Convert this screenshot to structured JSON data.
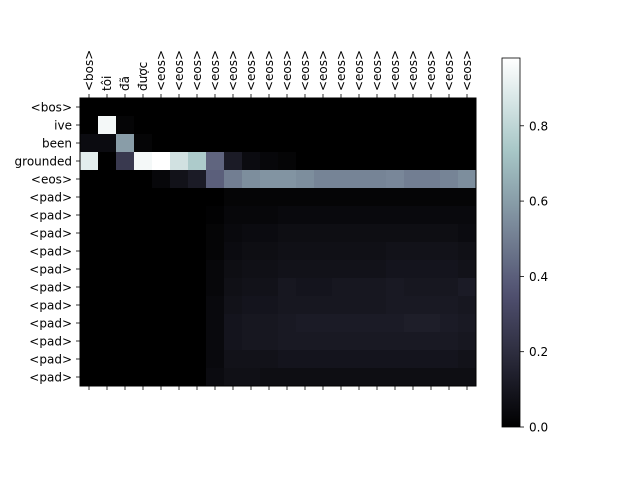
{
  "chart_data": {
    "type": "heatmap",
    "title": "",
    "xlabel": "",
    "ylabel": "",
    "x_labels": [
      "<bos>",
      "tôi",
      "đã",
      "được",
      "<eos>",
      "<eos>",
      "<eos>",
      "<eos>",
      "<eos>",
      "<eos>",
      "<eos>",
      "<eos>",
      "<eos>",
      "<eos>",
      "<eos>",
      "<eos>",
      "<eos>",
      "<eos>",
      "<eos>",
      "<eos>",
      "<eos>",
      "<eos>"
    ],
    "y_labels": [
      "<bos>",
      "ive",
      "been",
      "grounded",
      "<eos>",
      "<pad>",
      "<pad>",
      "<pad>",
      "<pad>",
      "<pad>",
      "<pad>",
      "<pad>",
      "<pad>",
      "<pad>",
      "<pad>",
      "<pad>"
    ],
    "colormap": "bone",
    "colorbar": {
      "min": 0.0,
      "max": 0.98,
      "ticks": [
        0.0,
        0.2,
        0.4,
        0.6,
        0.8
      ],
      "tick_labels": [
        "0.0",
        "0.2",
        "0.4",
        "0.6",
        "0.8"
      ]
    },
    "values": [
      [
        0.0,
        0.0,
        0.0,
        0.0,
        0.0,
        0.0,
        0.0,
        0.0,
        0.0,
        0.0,
        0.0,
        0.0,
        0.0,
        0.0,
        0.0,
        0.0,
        0.0,
        0.0,
        0.0,
        0.0,
        0.0,
        0.0
      ],
      [
        0.0,
        0.95,
        0.02,
        0.0,
        0.0,
        0.0,
        0.0,
        0.0,
        0.0,
        0.0,
        0.0,
        0.0,
        0.0,
        0.0,
        0.0,
        0.0,
        0.0,
        0.0,
        0.0,
        0.0,
        0.0,
        0.0
      ],
      [
        0.05,
        0.05,
        0.6,
        0.02,
        0.0,
        0.0,
        0.0,
        0.0,
        0.0,
        0.0,
        0.0,
        0.0,
        0.0,
        0.0,
        0.0,
        0.0,
        0.0,
        0.0,
        0.0,
        0.0,
        0.0,
        0.0
      ],
      [
        0.9,
        0.0,
        0.25,
        0.95,
        0.98,
        0.85,
        0.75,
        0.42,
        0.12,
        0.05,
        0.03,
        0.02,
        0.0,
        0.0,
        0.0,
        0.0,
        0.0,
        0.0,
        0.0,
        0.0,
        0.0,
        0.0
      ],
      [
        0.0,
        0.0,
        0.0,
        0.0,
        0.03,
        0.08,
        0.12,
        0.4,
        0.5,
        0.55,
        0.57,
        0.57,
        0.55,
        0.52,
        0.52,
        0.52,
        0.52,
        0.53,
        0.5,
        0.5,
        0.52,
        0.55
      ],
      [
        0.0,
        0.0,
        0.0,
        0.0,
        0.0,
        0.0,
        0.0,
        0.0,
        0.02,
        0.02,
        0.02,
        0.02,
        0.02,
        0.02,
        0.02,
        0.02,
        0.02,
        0.02,
        0.02,
        0.02,
        0.02,
        0.02
      ],
      [
        0.0,
        0.0,
        0.0,
        0.0,
        0.0,
        0.0,
        0.0,
        0.01,
        0.03,
        0.03,
        0.03,
        0.04,
        0.04,
        0.04,
        0.04,
        0.04,
        0.04,
        0.04,
        0.04,
        0.04,
        0.04,
        0.04
      ],
      [
        0.0,
        0.0,
        0.0,
        0.0,
        0.0,
        0.0,
        0.0,
        0.02,
        0.04,
        0.05,
        0.05,
        0.06,
        0.06,
        0.06,
        0.06,
        0.06,
        0.06,
        0.06,
        0.06,
        0.06,
        0.06,
        0.05
      ],
      [
        0.0,
        0.0,
        0.0,
        0.0,
        0.0,
        0.0,
        0.0,
        0.02,
        0.05,
        0.06,
        0.06,
        0.07,
        0.07,
        0.07,
        0.07,
        0.07,
        0.07,
        0.08,
        0.08,
        0.08,
        0.08,
        0.07
      ],
      [
        0.0,
        0.0,
        0.0,
        0.0,
        0.0,
        0.0,
        0.0,
        0.03,
        0.06,
        0.07,
        0.07,
        0.08,
        0.08,
        0.08,
        0.08,
        0.08,
        0.08,
        0.09,
        0.09,
        0.09,
        0.09,
        0.08
      ],
      [
        0.0,
        0.0,
        0.0,
        0.0,
        0.0,
        0.0,
        0.0,
        0.03,
        0.07,
        0.08,
        0.08,
        0.1,
        0.09,
        0.09,
        0.1,
        0.1,
        0.1,
        0.11,
        0.1,
        0.1,
        0.1,
        0.12
      ],
      [
        0.0,
        0.0,
        0.0,
        0.0,
        0.0,
        0.0,
        0.0,
        0.04,
        0.08,
        0.09,
        0.09,
        0.1,
        0.1,
        0.1,
        0.1,
        0.1,
        0.1,
        0.11,
        0.11,
        0.11,
        0.11,
        0.1
      ],
      [
        0.0,
        0.0,
        0.0,
        0.0,
        0.0,
        0.0,
        0.0,
        0.04,
        0.09,
        0.1,
        0.1,
        0.11,
        0.12,
        0.12,
        0.12,
        0.12,
        0.12,
        0.12,
        0.13,
        0.13,
        0.12,
        0.11
      ],
      [
        0.0,
        0.0,
        0.0,
        0.0,
        0.0,
        0.0,
        0.0,
        0.04,
        0.09,
        0.1,
        0.1,
        0.11,
        0.11,
        0.11,
        0.11,
        0.11,
        0.11,
        0.11,
        0.11,
        0.11,
        0.11,
        0.1
      ],
      [
        0.0,
        0.0,
        0.0,
        0.0,
        0.0,
        0.0,
        0.0,
        0.04,
        0.08,
        0.08,
        0.08,
        0.09,
        0.09,
        0.09,
        0.09,
        0.09,
        0.09,
        0.09,
        0.09,
        0.09,
        0.09,
        0.08
      ],
      [
        0.0,
        0.0,
        0.0,
        0.0,
        0.0,
        0.0,
        0.0,
        0.05,
        0.07,
        0.07,
        0.06,
        0.06,
        0.06,
        0.06,
        0.06,
        0.06,
        0.06,
        0.06,
        0.06,
        0.06,
        0.06,
        0.06
      ]
    ]
  }
}
